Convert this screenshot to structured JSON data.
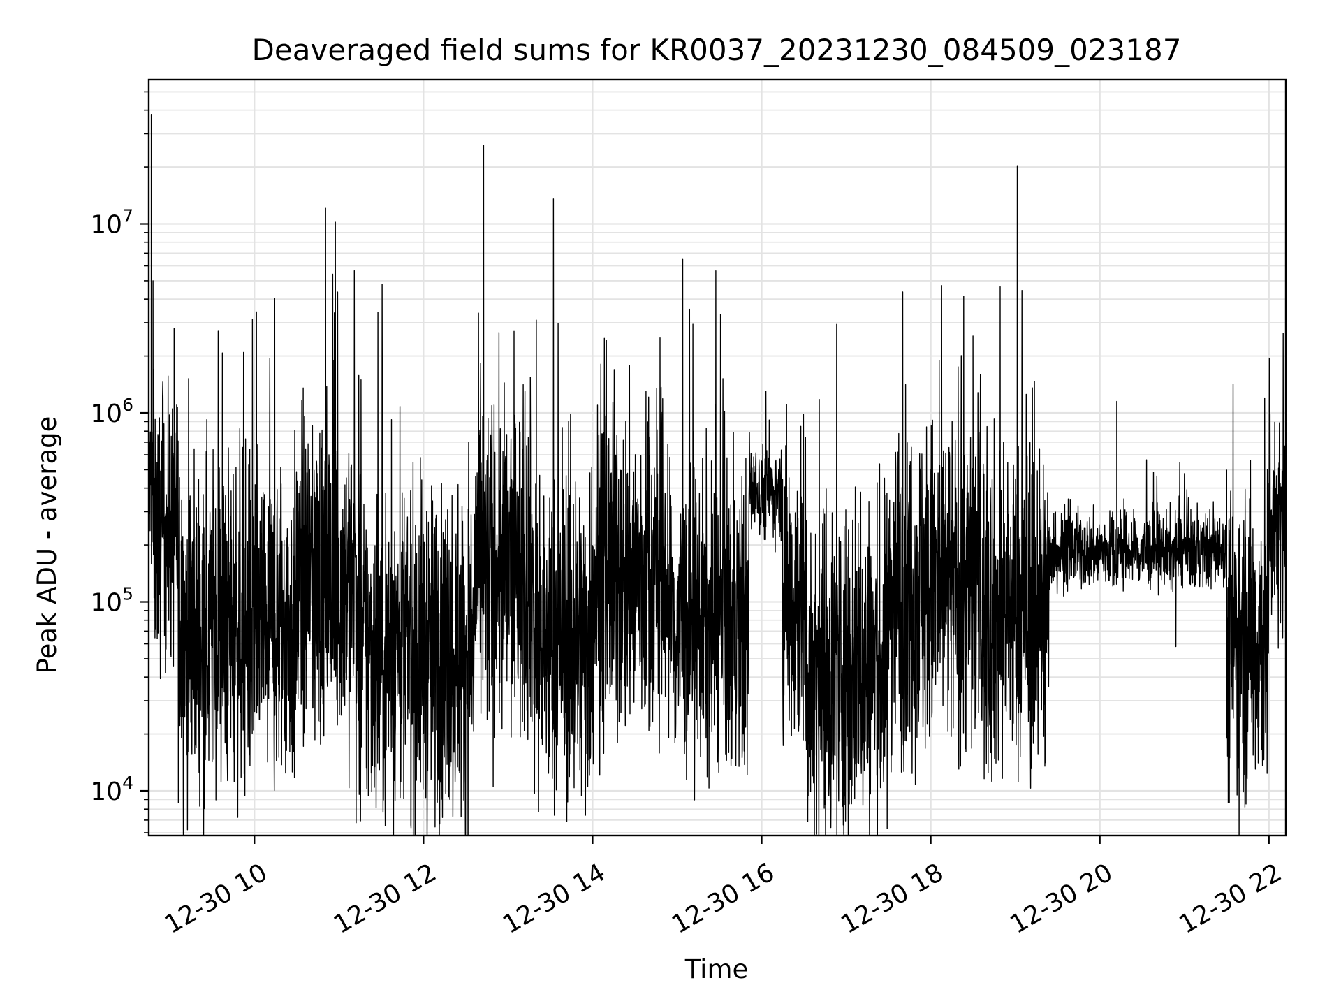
{
  "chart_data": {
    "type": "line",
    "title": "Deaveraged field sums for KR0037_20231230_084509_023187",
    "xlabel": "Time",
    "ylabel": "Peak ADU - average",
    "yscale": "log",
    "xlim": [
      8.75,
      22.2
    ],
    "ylim": [
      5800,
      58000000
    ],
    "grid": true,
    "x_ticks": [
      {
        "value": 10,
        "label": "12-30 10"
      },
      {
        "value": 12,
        "label": "12-30 12"
      },
      {
        "value": 14,
        "label": "12-30 14"
      },
      {
        "value": 16,
        "label": "12-30 16"
      },
      {
        "value": 18,
        "label": "12-30 18"
      },
      {
        "value": 20,
        "label": "12-30 20"
      },
      {
        "value": 22,
        "label": "12-30 22"
      }
    ],
    "y_ticks": [
      {
        "value": 10000,
        "base": "10",
        "exp": "4"
      },
      {
        "value": 100000,
        "base": "10",
        "exp": "5"
      },
      {
        "value": 1000000,
        "base": "10",
        "exp": "6"
      },
      {
        "value": 10000000,
        "base": "10",
        "exp": "7"
      }
    ],
    "series": [
      {
        "name": "field sums",
        "color": "#000000",
        "x_unit": "hours on 12-30",
        "segments": [
          {
            "t0": 8.75,
            "t1": 8.8,
            "level": 400000,
            "spread": 0.25
          },
          {
            "t0": 8.8,
            "t1": 9.1,
            "level": 230000,
            "spread": 0.35
          },
          {
            "t0": 9.1,
            "t1": 10.5,
            "level": 75000,
            "spread": 0.45
          },
          {
            "t0": 10.5,
            "t1": 11.2,
            "level": 130000,
            "spread": 0.45
          },
          {
            "t0": 11.2,
            "t1": 12.6,
            "level": 55000,
            "spread": 0.45
          },
          {
            "t0": 12.6,
            "t1": 13.3,
            "level": 150000,
            "spread": 0.45
          },
          {
            "t0": 13.3,
            "t1": 14.0,
            "level": 60000,
            "spread": 0.45
          },
          {
            "t0": 14.0,
            "t1": 14.9,
            "level": 140000,
            "spread": 0.45
          },
          {
            "t0": 14.9,
            "t1": 15.85,
            "level": 75000,
            "spread": 0.4
          },
          {
            "t0": 15.85,
            "t1": 16.25,
            "level": 380000,
            "spread": 0.12
          },
          {
            "t0": 16.25,
            "t1": 16.5,
            "level": 110000,
            "spread": 0.45
          },
          {
            "t0": 16.5,
            "t1": 17.5,
            "level": 45000,
            "spread": 0.45
          },
          {
            "t0": 17.5,
            "t1": 18.6,
            "level": 120000,
            "spread": 0.45
          },
          {
            "t0": 18.6,
            "t1": 19.4,
            "level": 90000,
            "spread": 0.45
          },
          {
            "t0": 19.4,
            "t1": 21.5,
            "level": 185000,
            "spread": 0.1
          },
          {
            "t0": 21.5,
            "t1": 22.0,
            "level": 65000,
            "spread": 0.42
          },
          {
            "t0": 22.0,
            "t1": 22.2,
            "level": 300000,
            "spread": 0.3
          }
        ],
        "peaks": [
          {
            "x": 8.78,
            "y": 38000000
          },
          {
            "x": 8.8,
            "y": 5000000
          },
          {
            "x": 9.05,
            "y": 2800000
          },
          {
            "x": 9.08,
            "y": 1100000
          },
          {
            "x": 12.7,
            "y": 960000
          },
          {
            "x": 13.2,
            "y": 1300000
          },
          {
            "x": 15.2,
            "y": 11000
          },
          {
            "x": 16.05,
            "y": 1300000
          },
          {
            "x": 16.82,
            "y": 8500
          },
          {
            "x": 18.1,
            "y": 1900000
          },
          {
            "x": 18.5,
            "y": 2550000
          },
          {
            "x": 19.35,
            "y": 13500
          },
          {
            "x": 20.2,
            "y": 1150000
          },
          {
            "x": 20.9,
            "y": 58000
          },
          {
            "x": 21.5,
            "y": 19000
          },
          {
            "x": 21.95,
            "y": 1200000
          }
        ]
      }
    ]
  }
}
